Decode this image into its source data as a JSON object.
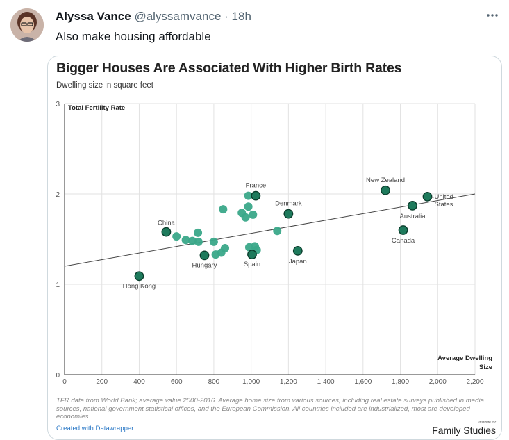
{
  "tweet": {
    "author_name": "Alyssa Vance",
    "handle": "@alyssamvance",
    "separator": "·",
    "time": "18h",
    "text": "Also make housing affordable",
    "more_icon": "more-horizontal-icon"
  },
  "chart_data": {
    "type": "scatter",
    "title": "Bigger Houses Are Associated With Higher Birth Rates",
    "subtitle": "Dwelling size in square feet",
    "xlabel": "Average Dwelling Size",
    "ylabel": "Total Fertility Rate",
    "xlim": [
      0,
      2200
    ],
    "ylim": [
      0,
      3
    ],
    "x_ticks": [
      0,
      200,
      400,
      600,
      800,
      1000,
      1200,
      1400,
      1600,
      1800,
      2000,
      2200
    ],
    "x_tick_labels": [
      "0",
      "200",
      "400",
      "600",
      "800",
      "1,000",
      "1,200",
      "1,400",
      "1,600",
      "1,800",
      "2,000",
      "2,200"
    ],
    "y_ticks": [
      0,
      1,
      2,
      3
    ],
    "y_tick_labels": [
      "0",
      "1",
      "2",
      "3"
    ],
    "grid": true,
    "trend_line": {
      "x": [
        0,
        2200
      ],
      "y": [
        1.2,
        2.0
      ]
    },
    "highlighted_color": "#1e7a5c",
    "other_color": "#3aa889",
    "points": [
      {
        "x": 400,
        "y": 1.09,
        "label": "Hong Kong",
        "highlight": true
      },
      {
        "x": 545,
        "y": 1.58,
        "label": "China",
        "highlight": true
      },
      {
        "x": 750,
        "y": 1.32,
        "label": "Hungary",
        "highlight": true
      },
      {
        "x": 1005,
        "y": 1.33,
        "label": "Spain",
        "highlight": true
      },
      {
        "x": 1025,
        "y": 1.98,
        "label": "France",
        "highlight": true
      },
      {
        "x": 1200,
        "y": 1.78,
        "label": "Denmark",
        "highlight": true
      },
      {
        "x": 1250,
        "y": 1.37,
        "label": "Japan",
        "highlight": true
      },
      {
        "x": 1720,
        "y": 2.04,
        "label": "New Zealand",
        "highlight": true
      },
      {
        "x": 1815,
        "y": 1.6,
        "label": "Canada",
        "highlight": true
      },
      {
        "x": 1865,
        "y": 1.87,
        "label": "Australia",
        "highlight": true
      },
      {
        "x": 1945,
        "y": 1.97,
        "label": "United States",
        "highlight": true
      },
      {
        "x": 600,
        "y": 1.53,
        "label": "",
        "highlight": false
      },
      {
        "x": 650,
        "y": 1.49,
        "label": "",
        "highlight": false
      },
      {
        "x": 685,
        "y": 1.48,
        "label": "",
        "highlight": false
      },
      {
        "x": 715,
        "y": 1.57,
        "label": "",
        "highlight": false
      },
      {
        "x": 718,
        "y": 1.47,
        "label": "",
        "highlight": false
      },
      {
        "x": 800,
        "y": 1.47,
        "label": "",
        "highlight": false
      },
      {
        "x": 810,
        "y": 1.33,
        "label": "",
        "highlight": false
      },
      {
        "x": 840,
        "y": 1.35,
        "label": "",
        "highlight": false
      },
      {
        "x": 860,
        "y": 1.4,
        "label": "",
        "highlight": false
      },
      {
        "x": 850,
        "y": 1.83,
        "label": "",
        "highlight": false
      },
      {
        "x": 950,
        "y": 1.79,
        "label": "",
        "highlight": false
      },
      {
        "x": 970,
        "y": 1.74,
        "label": "",
        "highlight": false
      },
      {
        "x": 985,
        "y": 1.98,
        "label": "",
        "highlight": false
      },
      {
        "x": 985,
        "y": 1.86,
        "label": "",
        "highlight": false
      },
      {
        "x": 1010,
        "y": 1.77,
        "label": "",
        "highlight": false
      },
      {
        "x": 990,
        "y": 1.41,
        "label": "",
        "highlight": false
      },
      {
        "x": 1020,
        "y": 1.42,
        "label": "",
        "highlight": false
      },
      {
        "x": 1030,
        "y": 1.38,
        "label": "",
        "highlight": false
      },
      {
        "x": 1140,
        "y": 1.59,
        "label": "",
        "highlight": false
      }
    ]
  },
  "footer": {
    "notes": "TFR data from World Bank; average value 2000-2016. Average home size from various sources, including real estate surveys published in media sources, national government statistical offices, and the European Commission. All countries included are industrialized, most are developed economies.",
    "credit": "Created with Datawrapper",
    "logo_small": "Institute for",
    "logo_main": "Family Studies"
  }
}
